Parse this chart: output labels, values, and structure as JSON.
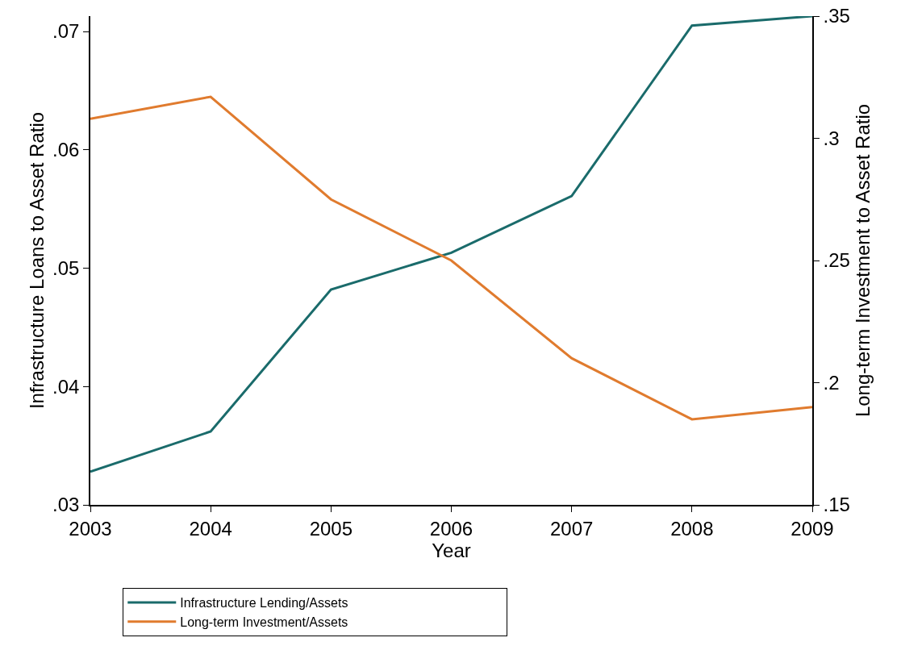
{
  "chart_data": {
    "type": "line",
    "xlabel": "Year",
    "ylabel": "Infrastructure Loans to Asset Ratio",
    "y2label": "Long-term Investment to Asset Ratio",
    "x": [
      2003,
      2004,
      2005,
      2006,
      2007,
      2008,
      2009
    ],
    "series": [
      {
        "name": "Infrastructure Lending/Assets",
        "color": "#1a6b6b",
        "values": [
          0.0328,
          0.0362,
          0.0482,
          0.0513,
          0.0561,
          0.0705,
          0.0713
        ]
      },
      {
        "name": "Long-term Investment/Assets",
        "color": "#e07b2e",
        "axis": "y2",
        "values": [
          0.308,
          0.317,
          0.275,
          0.25,
          0.21,
          0.185,
          0.19
        ]
      }
    ],
    "xlim": [
      2003,
      2009
    ],
    "xticks": [
      2003,
      2004,
      2005,
      2006,
      2007,
      2008,
      2009
    ],
    "ylim": [
      0.03,
      0.0713
    ],
    "yticks": [
      {
        "value": 0.03,
        "label": ".03"
      },
      {
        "value": 0.04,
        "label": ".04"
      },
      {
        "value": 0.05,
        "label": ".05"
      },
      {
        "value": 0.06,
        "label": ".06"
      },
      {
        "value": 0.07,
        "label": ".07"
      }
    ],
    "y2lim": [
      0.15,
      0.35
    ],
    "y2ticks": [
      {
        "value": 0.15,
        "label": ".15"
      },
      {
        "value": 0.2,
        "label": ".2"
      },
      {
        "value": 0.25,
        "label": ".25"
      },
      {
        "value": 0.3,
        "label": ".3"
      },
      {
        "value": 0.35,
        "label": ".35"
      }
    ],
    "grid": false,
    "legend": "bottom",
    "marker": "none",
    "line_style": "solid"
  }
}
